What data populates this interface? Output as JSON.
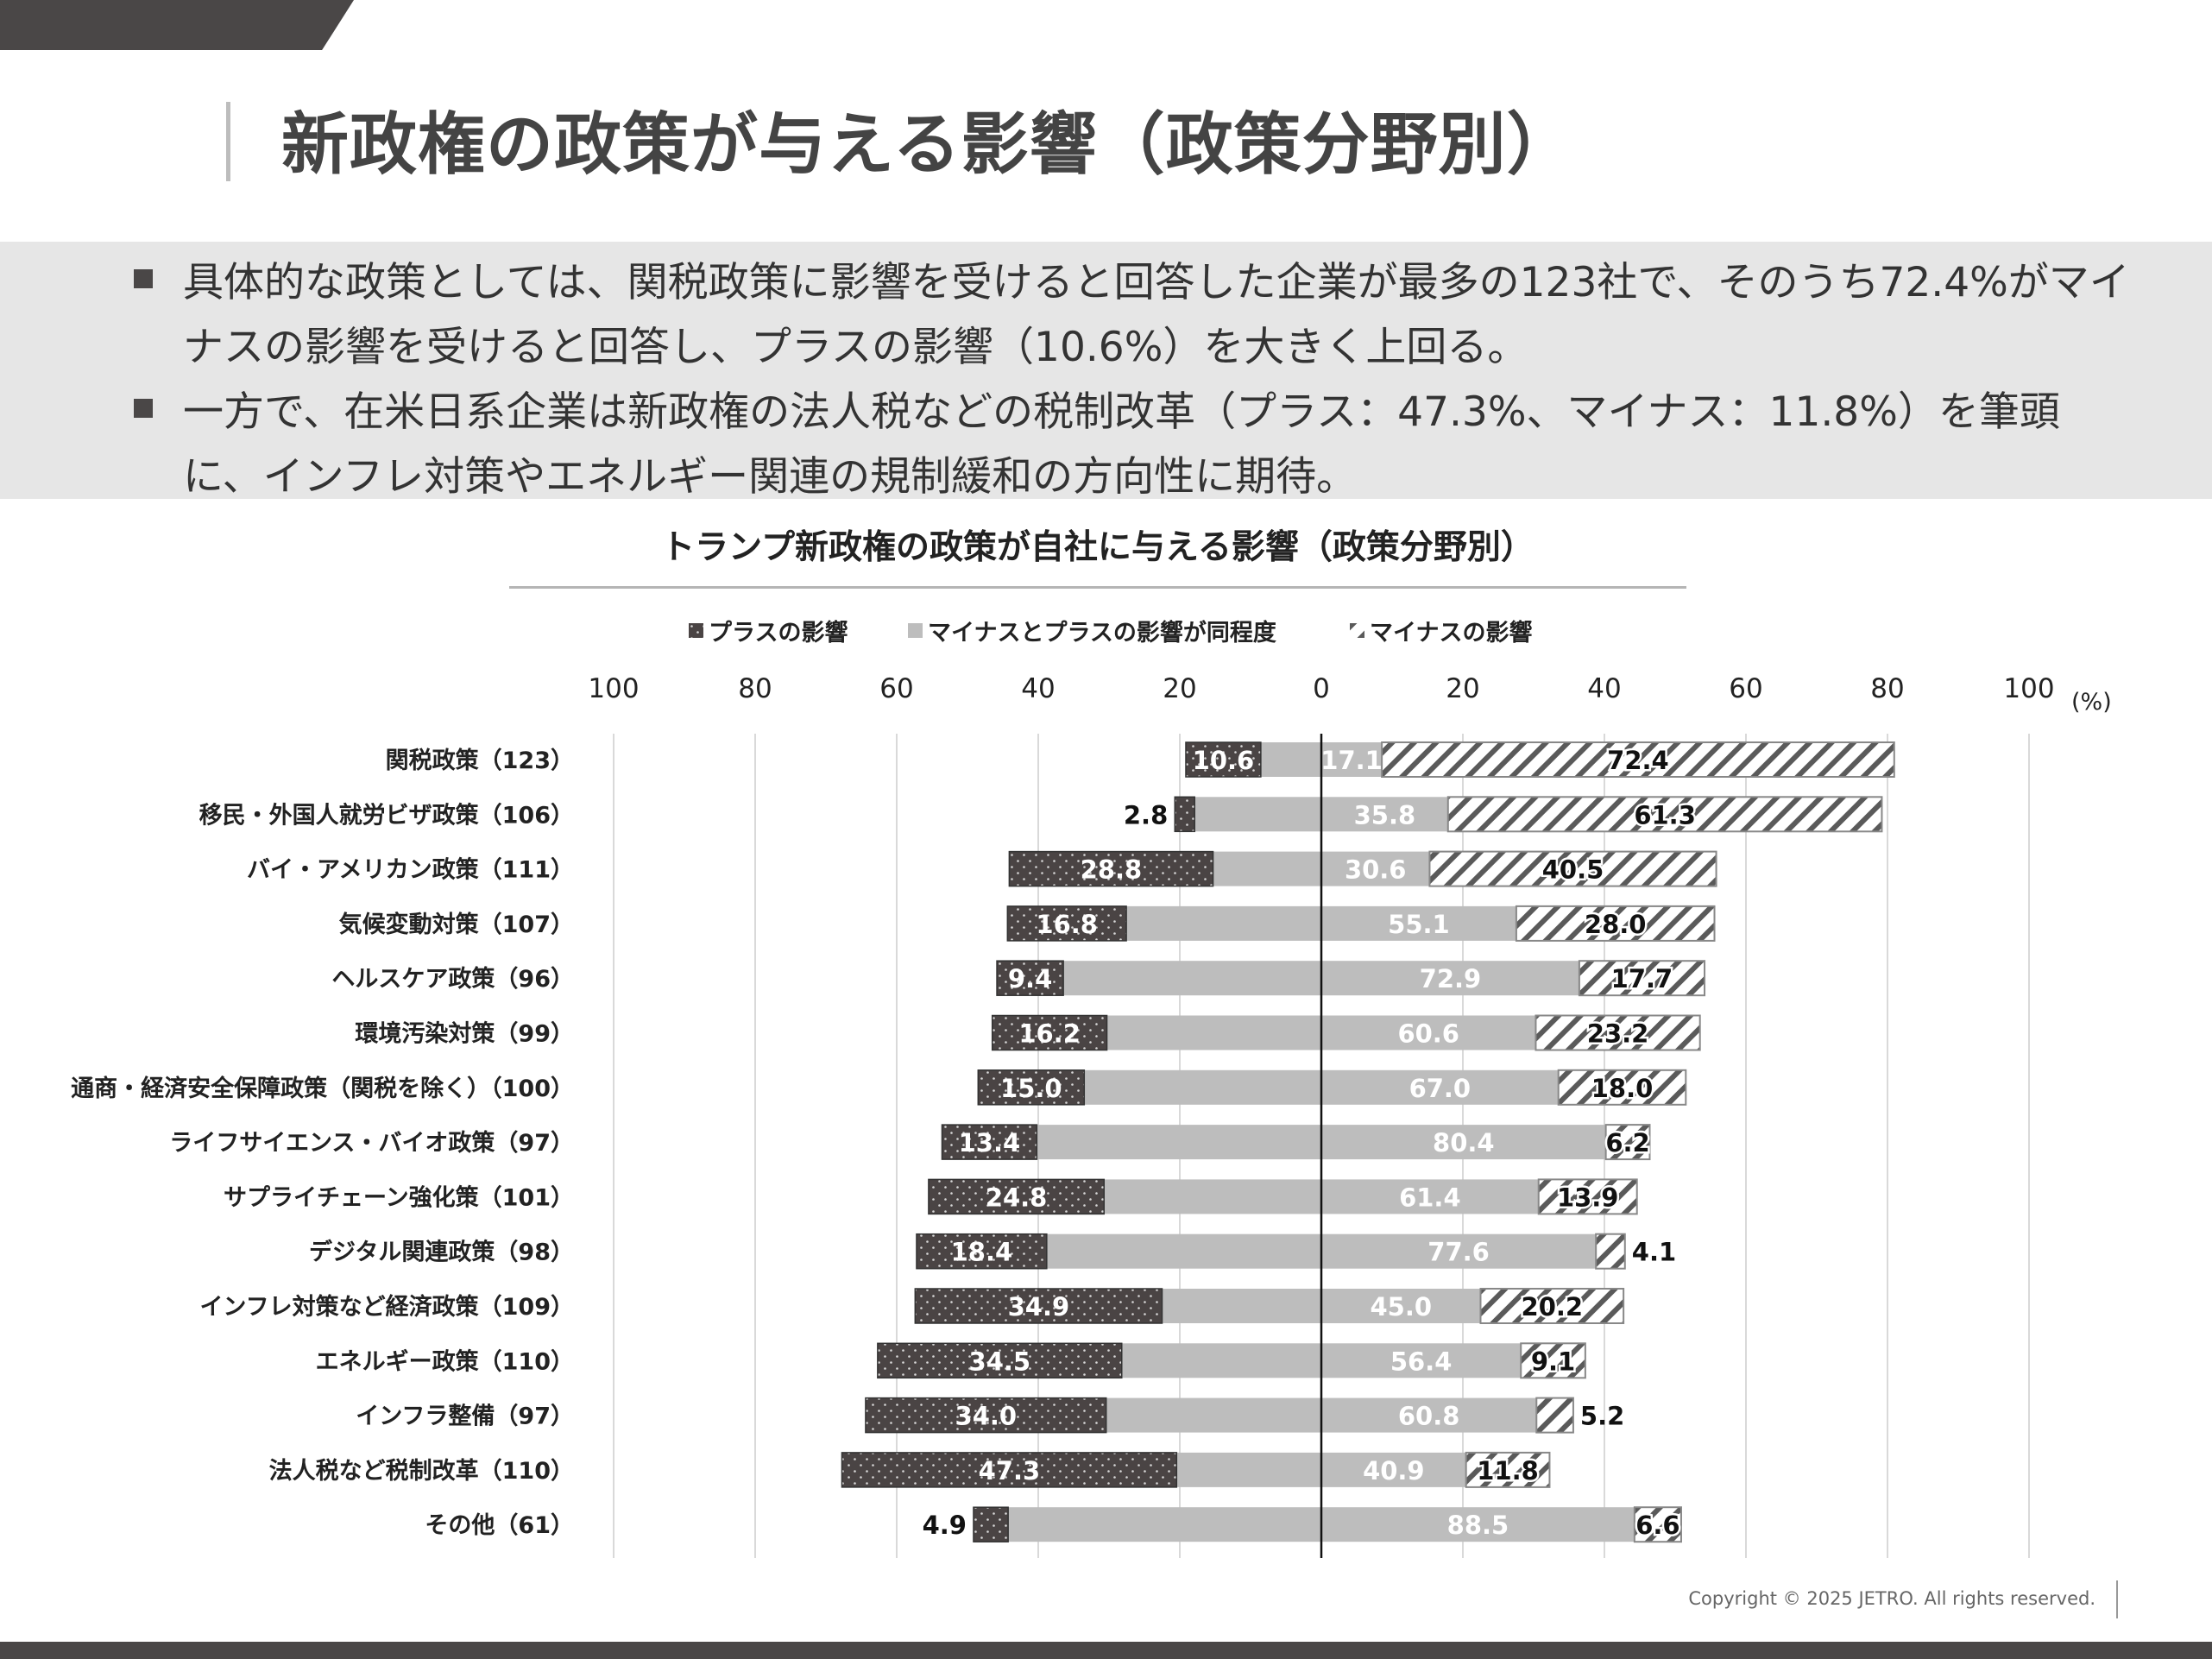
{
  "page": {
    "title": "新政権の政策が与える影響（政策分野別）",
    "bullets": [
      "具体的な政策としては、関税政策に影響を受けると回答した企業が最多の123社で、そのうち72.4%がマイナスの影響を受けると回答し、プラスの影響（10.6%）を大きく上回る。",
      "一方で、在米日系企業は新政権の法人税などの税制改革（プラス：47.3%、マイナス：11.8%）を筆頭に、インフレ対策やエネルギー関連の規制緩和の方向性に期待。"
    ],
    "footer": "Copyright © 2025 JETRO. All rights reserved."
  },
  "colors": {
    "corner": "#4a4747",
    "plus": "#4a4444",
    "same": "#bdbdbd",
    "minus_stripe": "#5a5a5a",
    "axis": "#111111",
    "grid": "#d9d9d9"
  },
  "chart_data": {
    "type": "bar",
    "orientation": "horizontal-diverging",
    "title": "トランプ新政権の政策が自社に与える影響（政策分野別）",
    "unit_label": "(%)",
    "xlim": [
      -100,
      100
    ],
    "tick_labels": [
      "100",
      "80",
      "60",
      "40",
      "20",
      "0",
      "20",
      "40",
      "60",
      "80",
      "100"
    ],
    "legend": [
      {
        "key": "plus",
        "label": "プラスの影響"
      },
      {
        "key": "same",
        "label": "マイナスとプラスの影響が同程度"
      },
      {
        "key": "minus",
        "label": "マイナスの影響"
      }
    ],
    "categories": [
      "関税政策（123）",
      "移民・外国人就労ビザ政策（106）",
      "バイ・アメリカン政策（111）",
      "気候変動対策（107）",
      "ヘルスケア政策（96）",
      "環境汚染対策（99）",
      "通商・経済安全保障政策（関税を除く）（100）",
      "ライフサイエンス・バイオ政策（97）",
      "サプライチェーン強化策（101）",
      "デジタル関連政策（98）",
      "インフレ対策など経済政策（109）",
      "エネルギー政策（110）",
      "インフラ整備（97）",
      "法人税など税制改革（110）",
      "その他（61）"
    ],
    "series": [
      {
        "name": "プラスの影響",
        "key": "plus",
        "values": [
          10.6,
          2.8,
          28.8,
          16.8,
          9.4,
          16.2,
          15.0,
          13.4,
          24.8,
          18.4,
          34.9,
          34.5,
          34.0,
          47.3,
          4.9
        ],
        "labels": [
          "10.6",
          "2.8",
          "28.8",
          "16.8",
          "9.4",
          "16.2",
          "15.0",
          "13.4",
          "24.8",
          "18.4",
          "34.9",
          "34.5",
          "34.0",
          "47.3",
          "4.9"
        ]
      },
      {
        "name": "マイナスとプラスの影響が同程度",
        "key": "same",
        "values": [
          17.1,
          35.8,
          30.6,
          55.1,
          72.9,
          60.6,
          67.0,
          80.4,
          61.4,
          77.6,
          45.0,
          56.4,
          60.8,
          40.9,
          88.5
        ],
        "labels": [
          "17.1",
          "35.8",
          "30.6",
          "55.1",
          "72.9",
          "60.6",
          "67.0",
          "80.4",
          "61.4",
          "77.6",
          "45.0",
          "56.4",
          "60.8",
          "40.9",
          "88.5"
        ]
      },
      {
        "name": "マイナスの影響",
        "key": "minus",
        "values": [
          72.4,
          61.3,
          40.5,
          28.0,
          17.7,
          23.2,
          18.0,
          6.2,
          13.9,
          4.1,
          20.2,
          9.1,
          5.2,
          11.8,
          6.6
        ],
        "labels": [
          "72.4",
          "61.3",
          "40.5",
          "28.0",
          "17.7",
          "23.2",
          "18.0",
          "6.2",
          "13.9",
          "4.1",
          "20.2",
          "9.1",
          "5.2",
          "11.8",
          "6.6"
        ]
      }
    ]
  }
}
